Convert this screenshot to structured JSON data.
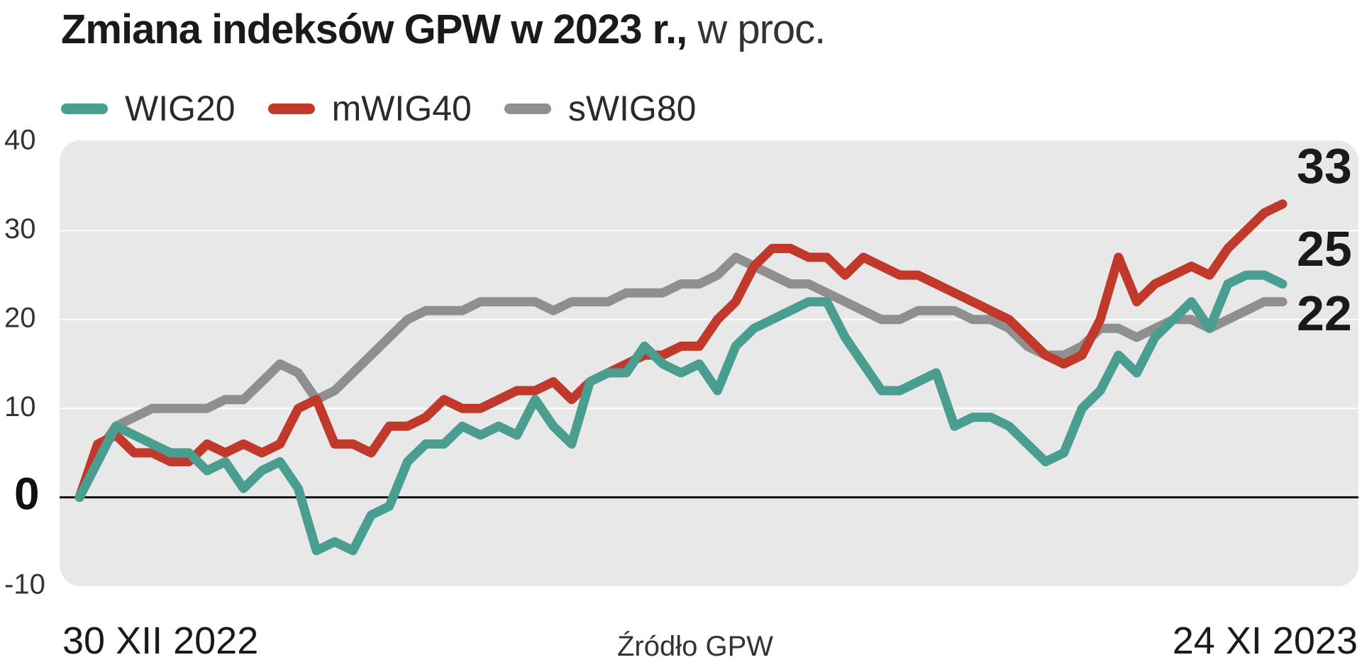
{
  "title_bold": "Zmiana indeksów GPW w 2023 r.,",
  "title_light": " w proc.",
  "legend": [
    {
      "name": "WIG20",
      "color": "#4a9e90"
    },
    {
      "name": "mWIG40",
      "color": "#c0392b"
    },
    {
      "name": "sWIG80",
      "color": "#8f8f8f"
    }
  ],
  "date_start": "30 XII 2022",
  "date_end": "24 XI 2023",
  "source": "Źródło GPW",
  "colors": {
    "plot_bg": "#e8e8e8",
    "zero_line": "#111111",
    "grid": "#ffffff"
  },
  "chart_data": {
    "type": "line",
    "title": "Zmiana indeksów GPW w 2023 r., w proc.",
    "x_range": [
      "30 XII 2022",
      "24 XI 2023"
    ],
    "ylim": [
      -10,
      40
    ],
    "yticks": [
      "40",
      "30",
      "20",
      "10",
      "0",
      "-10"
    ],
    "ytick_values": [
      40,
      30,
      20,
      10,
      0,
      -10
    ],
    "grid": true,
    "legend_position": "top-left",
    "end_labels": [
      {
        "series": "mWIG40",
        "label": "33",
        "value": 33
      },
      {
        "series": "WIG20",
        "label": "25",
        "value": 25
      },
      {
        "series": "sWIG80",
        "label": "22",
        "value": 22
      }
    ],
    "series": [
      {
        "name": "WIG20",
        "color": "#4a9e90",
        "values": [
          0,
          4,
          8,
          7,
          6,
          5,
          5,
          3,
          4,
          1,
          3,
          4,
          1,
          -6,
          -5,
          -6,
          -2,
          -1,
          4,
          6,
          6,
          8,
          7,
          8,
          7,
          11,
          8,
          6,
          13,
          14,
          14,
          17,
          15,
          14,
          15,
          12,
          17,
          19,
          20,
          21,
          22,
          22,
          18,
          15,
          12,
          12,
          13,
          14,
          8,
          9,
          9,
          8,
          6,
          4,
          5,
          10,
          12,
          16,
          14,
          18,
          20,
          22,
          19,
          24,
          25,
          25,
          24
        ]
      },
      {
        "name": "mWIG40",
        "color": "#c0392b",
        "values": [
          0,
          6,
          7,
          5,
          5,
          4,
          4,
          6,
          5,
          6,
          5,
          6,
          10,
          11,
          6,
          6,
          5,
          8,
          8,
          9,
          11,
          10,
          10,
          11,
          12,
          12,
          13,
          11,
          13,
          14,
          15,
          16,
          16,
          17,
          17,
          20,
          22,
          26,
          28,
          28,
          27,
          27,
          25,
          27,
          26,
          25,
          25,
          24,
          23,
          22,
          21,
          20,
          18,
          16,
          15,
          16,
          20,
          27,
          22,
          24,
          25,
          26,
          25,
          28,
          30,
          32,
          33
        ]
      },
      {
        "name": "sWIG80",
        "color": "#8f8f8f",
        "values": [
          0,
          5,
          8,
          9,
          10,
          10,
          10,
          10,
          11,
          11,
          13,
          15,
          14,
          11,
          12,
          14,
          16,
          18,
          20,
          21,
          21,
          21,
          22,
          22,
          22,
          22,
          21,
          22,
          22,
          22,
          23,
          23,
          23,
          24,
          24,
          25,
          27,
          26,
          25,
          24,
          24,
          23,
          22,
          21,
          20,
          20,
          21,
          21,
          21,
          20,
          20,
          19,
          17,
          16,
          16,
          17,
          19,
          19,
          18,
          19,
          20,
          20,
          19,
          20,
          21,
          22,
          22
        ]
      }
    ]
  }
}
